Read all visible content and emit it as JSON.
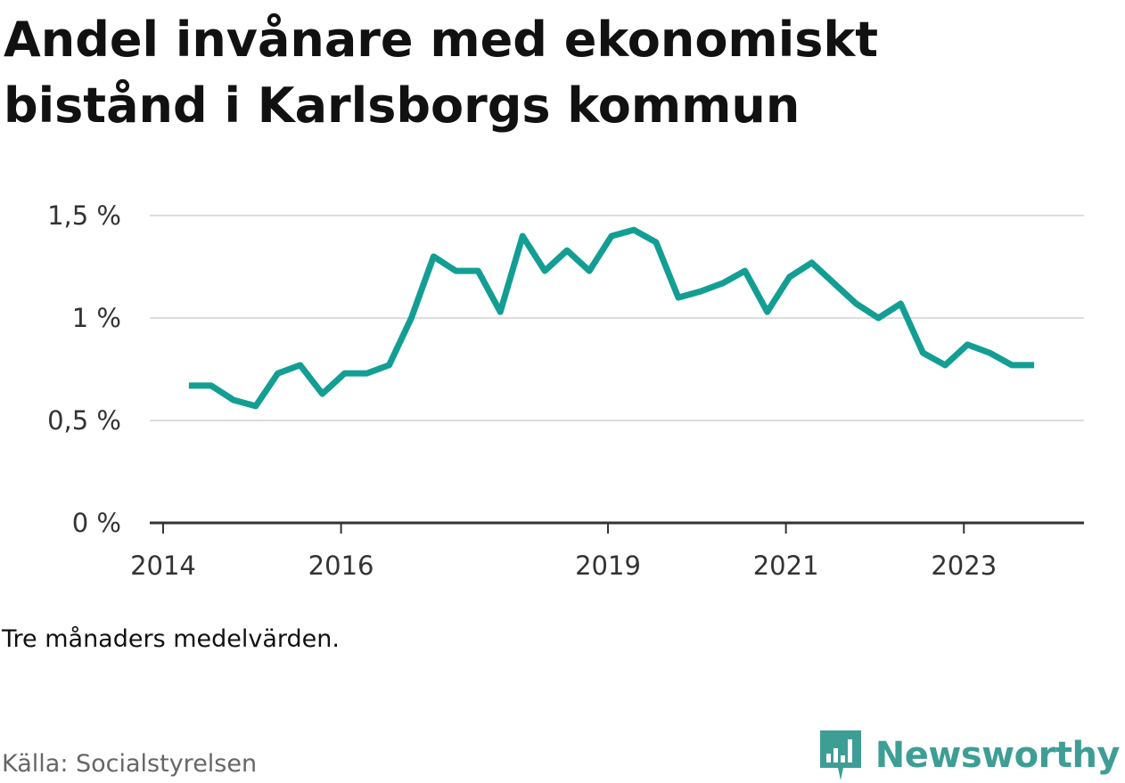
{
  "title_lines": [
    "Andel invånare med ekonomiskt",
    "bistånd i Karlsborgs kommun"
  ],
  "note": "Tre månaders medelvärden.",
  "source": "Källa: Socialstyrelsen",
  "brand": {
    "name": "Newsworthy",
    "color": "#3e9e96",
    "icon": "newsworthy-logo-icon"
  },
  "colors": {
    "line": "#139e94",
    "grid": "#dddddd",
    "axis": "#333333"
  },
  "chart_data": {
    "type": "line",
    "title": "Andel invånare med ekonomiskt bistånd i Karlsborgs kommun",
    "xlabel": "",
    "ylabel": "",
    "x_ticks": [
      2014,
      2016,
      2019,
      2021,
      2023
    ],
    "x_tick_labels": [
      "2014",
      "2016",
      "2019",
      "2021",
      "2023"
    ],
    "xlim": [
      2013.85,
      2024.35
    ],
    "y_ticks": [
      0,
      0.5,
      1,
      1.5
    ],
    "y_tick_labels": [
      "0 %",
      "0,5 %",
      "1 %",
      "1,5 %"
    ],
    "ylim": [
      0,
      1.5
    ],
    "grid": true,
    "series": [
      {
        "x": [
          2014.29,
          2014.54,
          2014.79,
          2015.04,
          2015.29,
          2015.54,
          2015.79,
          2016.04,
          2016.29,
          2016.54,
          2016.79,
          2017.04,
          2017.29,
          2017.54,
          2017.79,
          2018.04,
          2018.29,
          2018.54,
          2018.79,
          2019.04,
          2019.29,
          2019.54,
          2019.79,
          2020.04,
          2020.29,
          2020.54,
          2020.79,
          2021.04,
          2021.29,
          2021.54,
          2021.79,
          2022.04,
          2022.29,
          2022.54,
          2022.79,
          2023.04,
          2023.29,
          2023.54,
          2023.79
        ],
        "y": [
          0.67,
          0.67,
          0.6,
          0.57,
          0.73,
          0.77,
          0.63,
          0.73,
          0.73,
          0.77,
          1.0,
          1.3,
          1.23,
          1.23,
          1.03,
          1.4,
          1.23,
          1.33,
          1.23,
          1.4,
          1.43,
          1.37,
          1.1,
          1.13,
          1.17,
          1.23,
          1.03,
          1.2,
          1.27,
          1.17,
          1.07,
          1.0,
          1.07,
          0.83,
          0.77,
          0.87,
          0.83,
          0.77,
          0.77
        ]
      }
    ]
  }
}
